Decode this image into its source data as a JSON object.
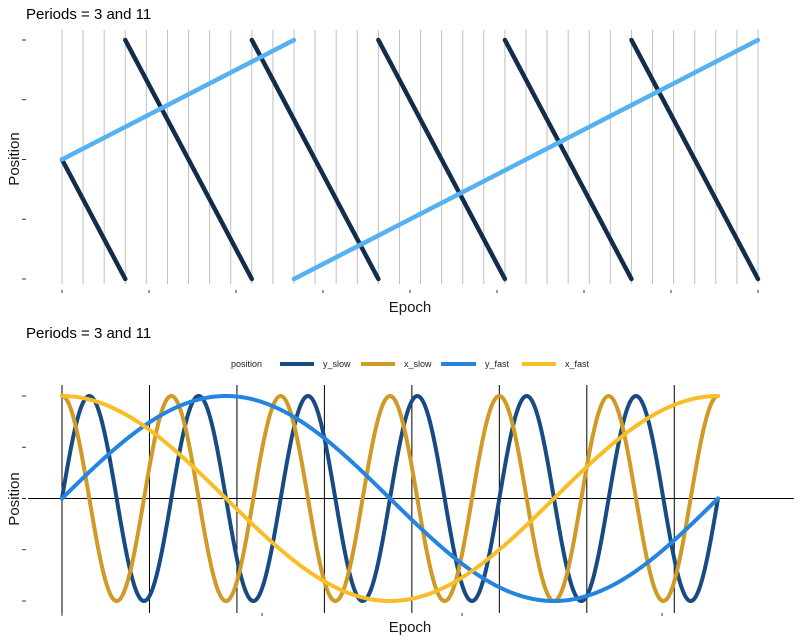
{
  "chart_data": [
    {
      "type": "line",
      "title": "Periods = 3 and 11",
      "xlabel": "Epoch",
      "ylabel": "Position",
      "x_range": [
        0,
        33
      ],
      "ylim": [
        -1,
        1
      ],
      "tick_labels_shown": false,
      "vertical_gridlines_every_epoch": true,
      "series": [
        {
          "color": "#142c4c",
          "segments": [
            [
              [
                0,
                0
              ],
              [
                3,
                -1
              ]
            ],
            [
              [
                3,
                1
              ],
              [
                9,
                -1
              ]
            ],
            [
              [
                9,
                1
              ],
              [
                15,
                -1
              ]
            ],
            [
              [
                15,
                1
              ],
              [
                21,
                -1
              ]
            ],
            [
              [
                21,
                1
              ],
              [
                27,
                -1
              ]
            ],
            [
              [
                27,
                1
              ],
              [
                33,
                -1
              ]
            ]
          ]
        },
        {
          "color": "#56b1f0",
          "segments": [
            [
              [
                0,
                0
              ],
              [
                11,
                1
              ]
            ],
            [
              [
                11,
                -1
              ],
              [
                33,
                1
              ]
            ]
          ]
        }
      ]
    },
    {
      "type": "line",
      "title": "Periods = 3 and 11",
      "xlabel": "Epoch",
      "ylabel": "Position",
      "x_range": [
        0,
        33
      ],
      "ylim": [
        -1,
        1
      ],
      "tick_labels_shown": false,
      "vertical_lines_at": [
        0,
        4.4,
        8.8,
        13.2,
        17.6,
        22,
        26.4,
        30.8
      ],
      "legend": {
        "title": "position",
        "placement": "top",
        "entries": [
          "y_slow",
          "x_slow",
          "y_fast",
          "x_fast"
        ]
      },
      "series": [
        {
          "name": "y_slow",
          "function": "sin",
          "period": 5.5,
          "color": "#174c82"
        },
        {
          "name": "x_slow",
          "function": "cos",
          "period": 5.5,
          "color": "#cf9a25"
        },
        {
          "name": "y_fast",
          "function": "sin",
          "period": 33,
          "color": "#2484e0"
        },
        {
          "name": "x_fast",
          "function": "cos",
          "period": 33,
          "color": "#f9bd28"
        }
      ]
    }
  ]
}
